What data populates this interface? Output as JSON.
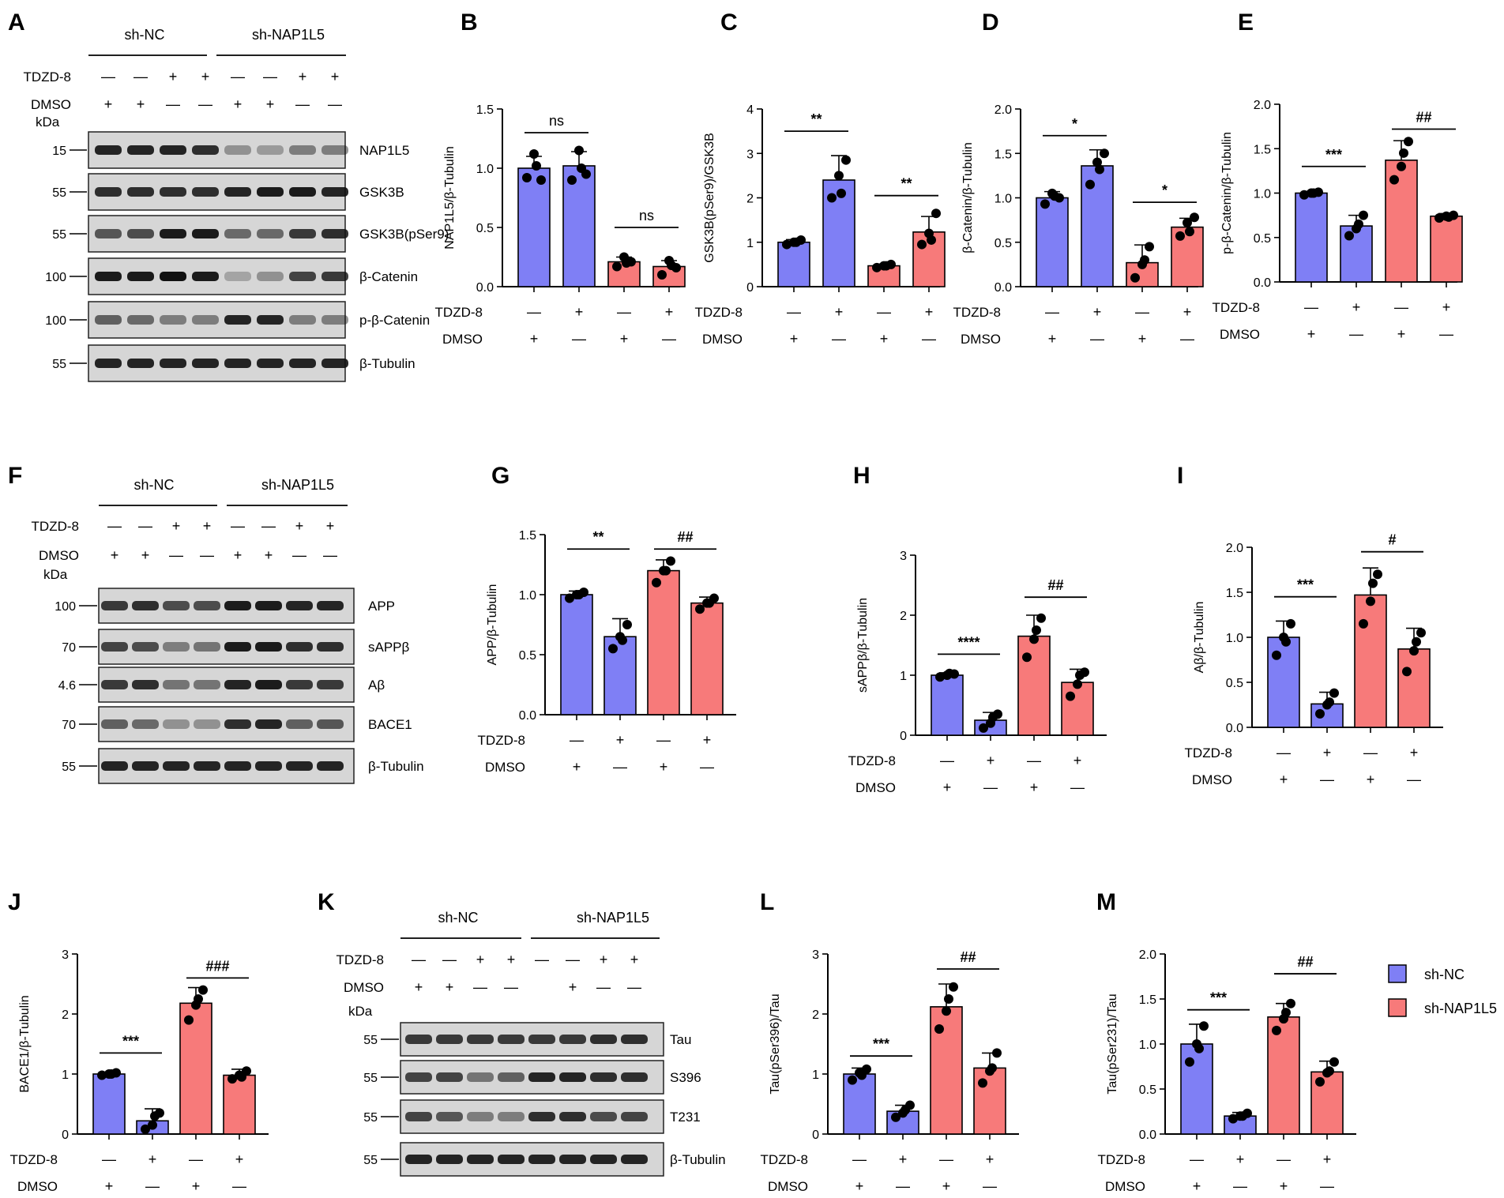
{
  "colors": {
    "shNC": "#7f7ff5",
    "shNAP": "#f77a7a",
    "blot_bg": "#d6d6d6",
    "band": "#111111"
  },
  "treat_labels": {
    "tdzd": "TDZD-8",
    "dmso": "DMSO",
    "kda": "kDa"
  },
  "legend": {
    "items": [
      {
        "label": "sh-NC",
        "color": "#7f7ff5"
      },
      {
        "label": "sh-NAP1L5",
        "color": "#f77a7a"
      }
    ]
  },
  "blots": [
    {
      "label": "A",
      "groups": [
        "sh-NC",
        "sh-NAP1L5"
      ],
      "tdzd": [
        "—",
        "—",
        "+",
        "+",
        "—",
        "—",
        "+",
        "+"
      ],
      "dmso": [
        "+",
        "+",
        "—",
        "—",
        "+",
        "+",
        "—",
        "—"
      ],
      "rows": [
        {
          "marker": "15",
          "name": "NAP1L5",
          "intensity": [
            0.9,
            0.9,
            0.9,
            0.85,
            0.35,
            0.3,
            0.45,
            0.45
          ]
        },
        {
          "marker": "55",
          "name": "GSK3B",
          "intensity": [
            0.85,
            0.85,
            0.85,
            0.85,
            0.9,
            0.95,
            0.95,
            0.9
          ]
        },
        {
          "marker": "55",
          "name": "GSK3B(pSer9)",
          "intensity": [
            0.65,
            0.7,
            0.95,
            0.95,
            0.55,
            0.55,
            0.8,
            0.85
          ]
        },
        {
          "marker": "100",
          "name": "β-Catenin",
          "intensity": [
            0.95,
            0.95,
            1.0,
            0.95,
            0.25,
            0.35,
            0.75,
            0.8
          ]
        },
        {
          "marker": "100",
          "name": "p-β-Catenin",
          "intensity": [
            0.6,
            0.55,
            0.45,
            0.45,
            0.9,
            0.9,
            0.45,
            0.45
          ]
        },
        {
          "marker": "55",
          "name": "β-Tubulin",
          "intensity": [
            0.9,
            0.9,
            0.9,
            0.9,
            0.9,
            0.9,
            0.9,
            0.9
          ]
        }
      ]
    },
    {
      "label": "F",
      "groups": [
        "sh-NC",
        "sh-NAP1L5"
      ],
      "tdzd": [
        "—",
        "—",
        "+",
        "+",
        "—",
        "—",
        "+",
        "+"
      ],
      "dmso": [
        "+",
        "+",
        "—",
        "—",
        "+",
        "+",
        "—",
        "—"
      ],
      "rows": [
        {
          "marker": "100",
          "name": "APP",
          "intensity": [
            0.8,
            0.85,
            0.7,
            0.7,
            0.95,
            0.95,
            0.9,
            0.9
          ]
        },
        {
          "marker": "70",
          "name": "sAPPβ",
          "intensity": [
            0.75,
            0.7,
            0.45,
            0.5,
            0.95,
            0.95,
            0.85,
            0.85
          ]
        },
        {
          "marker": "4.6",
          "name": "Aβ",
          "intensity": [
            0.8,
            0.85,
            0.5,
            0.5,
            0.9,
            0.95,
            0.8,
            0.8
          ]
        },
        {
          "marker": "70",
          "name": "BACE1",
          "intensity": [
            0.6,
            0.55,
            0.35,
            0.35,
            0.85,
            0.9,
            0.6,
            0.65
          ]
        },
        {
          "marker": "55",
          "name": "β-Tubulin",
          "intensity": [
            0.9,
            0.9,
            0.9,
            0.9,
            0.9,
            0.9,
            0.9,
            0.9
          ]
        }
      ]
    },
    {
      "label": "K",
      "groups": [
        "sh-NC",
        "sh-NAP1L5"
      ],
      "tdzd": [
        "—",
        "—",
        "+",
        "+",
        "—",
        "—",
        "+",
        "+"
      ],
      "dmso": [
        "+",
        "+",
        "—",
        "—",
        "",
        "+",
        "—",
        "—"
      ],
      "rows": [
        {
          "marker": "55",
          "name": "Tau",
          "intensity": [
            0.8,
            0.8,
            0.8,
            0.8,
            0.8,
            0.8,
            0.85,
            0.85
          ]
        },
        {
          "marker": "55",
          "name": "S396",
          "intensity": [
            0.75,
            0.75,
            0.5,
            0.6,
            0.9,
            0.9,
            0.85,
            0.85
          ]
        },
        {
          "marker": "55",
          "name": "T231",
          "intensity": [
            0.75,
            0.65,
            0.45,
            0.45,
            0.85,
            0.85,
            0.7,
            0.75
          ]
        },
        {
          "marker": "55",
          "name": "β-Tubulin",
          "intensity": [
            0.9,
            0.9,
            0.9,
            0.9,
            0.9,
            0.9,
            0.9,
            0.9
          ]
        }
      ]
    }
  ],
  "chart_data": [
    {
      "label": "B",
      "type": "bar",
      "ylabel": "NAP1L5/β-Tubulin",
      "ylim": [
        0,
        1.5
      ],
      "yticks": [
        "0.0",
        "0.5",
        "1.0",
        "1.5"
      ],
      "tdzd": [
        "—",
        "+",
        "—",
        "+"
      ],
      "dmso": [
        "+",
        "—",
        "+",
        "—"
      ],
      "values": [
        1.0,
        1.02,
        0.21,
        0.17
      ],
      "errors": [
        0.1,
        0.12,
        0.04,
        0.05
      ],
      "points": [
        [
          0.92,
          1.12,
          0.9,
          1.02
        ],
        [
          0.9,
          1.15,
          0.95,
          1.0
        ],
        [
          0.17,
          0.25,
          0.21,
          0.2
        ],
        [
          0.1,
          0.22,
          0.16,
          0.18
        ]
      ],
      "significance": [
        {
          "from": 0,
          "to": 1,
          "label": "ns",
          "y": 1.3
        },
        {
          "from": 2,
          "to": 3,
          "label": "ns",
          "y": 0.5
        }
      ]
    },
    {
      "label": "C",
      "type": "bar",
      "ylabel": "GSK3B(pSer9)/GSK3B",
      "ylim": [
        0,
        4
      ],
      "yticks": [
        "0",
        "1",
        "2",
        "3",
        "4"
      ],
      "tdzd": [
        "—",
        "+",
        "—",
        "+"
      ],
      "dmso": [
        "+",
        "—",
        "+",
        "—"
      ],
      "values": [
        1.0,
        2.4,
        0.47,
        1.23
      ],
      "errors": [
        0.06,
        0.55,
        0.04,
        0.35
      ],
      "points": [
        [
          0.95,
          1.0,
          1.05,
          1.0
        ],
        [
          2.0,
          2.5,
          2.85,
          2.1
        ],
        [
          0.43,
          0.47,
          0.5,
          0.47
        ],
        [
          0.95,
          1.2,
          1.65,
          1.05
        ]
      ],
      "significance": [
        {
          "from": 0,
          "to": 1,
          "label": "**",
          "y": 3.5
        },
        {
          "from": 2,
          "to": 3,
          "label": "**",
          "y": 2.05
        }
      ]
    },
    {
      "label": "D",
      "type": "bar",
      "ylabel": "β-Catenin/β-Tubulin",
      "ylim": [
        0,
        2
      ],
      "yticks": [
        "0.0",
        "0.5",
        "1.0",
        "1.5",
        "2.0"
      ],
      "tdzd": [
        "—",
        "+",
        "—",
        "+"
      ],
      "dmso": [
        "+",
        "—",
        "+",
        "—"
      ],
      "values": [
        1.0,
        1.36,
        0.27,
        0.67
      ],
      "errors": [
        0.07,
        0.18,
        0.2,
        0.1
      ],
      "points": [
        [
          0.93,
          1.05,
          1.0,
          1.02
        ],
        [
          1.15,
          1.4,
          1.5,
          1.32
        ],
        [
          0.1,
          0.25,
          0.45,
          0.3
        ],
        [
          0.57,
          0.72,
          0.78,
          0.62
        ]
      ],
      "significance": [
        {
          "from": 0,
          "to": 1,
          "label": "*",
          "y": 1.7
        },
        {
          "from": 2,
          "to": 3,
          "label": "*",
          "y": 0.95
        }
      ]
    },
    {
      "label": "E",
      "type": "bar",
      "ylabel": "p-β-Catenin/β-Tubulin",
      "ylim": [
        0,
        2
      ],
      "yticks": [
        "0.0",
        "0.5",
        "1.0",
        "1.5",
        "2.0"
      ],
      "tdzd": [
        "—",
        "+",
        "—",
        "+"
      ],
      "dmso": [
        "+",
        "—",
        "+",
        "—"
      ],
      "values": [
        1.0,
        0.63,
        1.37,
        0.74
      ],
      "errors": [
        0.02,
        0.12,
        0.22,
        0.03
      ],
      "points": [
        [
          0.98,
          1.0,
          1.01,
          1.0
        ],
        [
          0.52,
          0.6,
          0.75,
          0.65
        ],
        [
          1.15,
          1.3,
          1.58,
          1.45
        ],
        [
          0.72,
          0.74,
          0.75,
          0.73
        ]
      ],
      "significance": [
        {
          "from": 0,
          "to": 1,
          "label": "***",
          "y": 1.3
        },
        {
          "from": 2,
          "to": 3,
          "label": "##",
          "y": 1.72
        }
      ]
    },
    {
      "label": "G",
      "type": "bar",
      "ylabel": "APP/β-Tubulin",
      "ylim": [
        0,
        1.5
      ],
      "yticks": [
        "0.0",
        "0.5",
        "1.0",
        "1.5"
      ],
      "tdzd": [
        "—",
        "+",
        "—",
        "+"
      ],
      "dmso": [
        "+",
        "—",
        "+",
        "—"
      ],
      "values": [
        1.0,
        0.65,
        1.2,
        0.93
      ],
      "errors": [
        0.03,
        0.15,
        0.09,
        0.05
      ],
      "points": [
        [
          0.97,
          1.0,
          1.02,
          1.0
        ],
        [
          0.55,
          0.65,
          0.75,
          0.62
        ],
        [
          1.1,
          1.2,
          1.28,
          1.2
        ],
        [
          0.88,
          0.93,
          0.97,
          0.93
        ]
      ],
      "significance": [
        {
          "from": 0,
          "to": 1,
          "label": "**",
          "y": 1.38
        },
        {
          "from": 2,
          "to": 3,
          "label": "##",
          "y": 1.38
        }
      ]
    },
    {
      "label": "H",
      "type": "bar",
      "ylabel": "sAPPβ/β-Tubulin",
      "ylim": [
        0,
        3
      ],
      "yticks": [
        "0",
        "1",
        "2",
        "3"
      ],
      "tdzd": [
        "—",
        "+",
        "—",
        "+"
      ],
      "dmso": [
        "+",
        "—",
        "+",
        "—"
      ],
      "values": [
        1.0,
        0.25,
        1.65,
        0.88
      ],
      "errors": [
        0.04,
        0.13,
        0.35,
        0.22
      ],
      "points": [
        [
          0.97,
          1.0,
          1.02,
          1.03
        ],
        [
          0.12,
          0.2,
          0.35,
          0.3
        ],
        [
          1.3,
          1.6,
          1.95,
          1.75
        ],
        [
          0.65,
          0.85,
          1.05,
          1.0
        ]
      ],
      "significance": [
        {
          "from": 0,
          "to": 1,
          "label": "****",
          "y": 1.35
        },
        {
          "from": 2,
          "to": 3,
          "label": "##",
          "y": 2.3
        }
      ]
    },
    {
      "label": "I",
      "type": "bar",
      "ylabel": "Aβ/β-Tubulin",
      "ylim": [
        0,
        2
      ],
      "yticks": [
        "0.0",
        "0.5",
        "1.0",
        "1.5",
        "2.0"
      ],
      "tdzd": [
        "—",
        "+",
        "—",
        "+"
      ],
      "dmso": [
        "+",
        "—",
        "+",
        "—"
      ],
      "values": [
        1.0,
        0.26,
        1.47,
        0.87
      ],
      "errors": [
        0.18,
        0.13,
        0.3,
        0.23
      ],
      "points": [
        [
          0.8,
          1.0,
          1.15,
          0.95
        ],
        [
          0.15,
          0.25,
          0.38,
          0.28
        ],
        [
          1.15,
          1.4,
          1.7,
          1.6
        ],
        [
          0.62,
          0.85,
          1.05,
          0.95
        ]
      ],
      "significance": [
        {
          "from": 0,
          "to": 1,
          "label": "***",
          "y": 1.45
        },
        {
          "from": 2,
          "to": 3,
          "label": "#",
          "y": 1.95
        }
      ]
    },
    {
      "label": "J",
      "type": "bar",
      "ylabel": "BACE1/β-Tubulin",
      "ylim": [
        0,
        3
      ],
      "yticks": [
        "0",
        "1",
        "2",
        "3"
      ],
      "tdzd": [
        "—",
        "+",
        "—",
        "+"
      ],
      "dmso": [
        "+",
        "—",
        "+",
        "—"
      ],
      "values": [
        1.0,
        0.22,
        2.18,
        0.98
      ],
      "errors": [
        0.03,
        0.2,
        0.26,
        0.1
      ],
      "points": [
        [
          0.98,
          1.0,
          1.02,
          1.0
        ],
        [
          0.08,
          0.15,
          0.35,
          0.3
        ],
        [
          1.9,
          2.15,
          2.4,
          2.25
        ],
        [
          0.92,
          0.98,
          1.05,
          0.95
        ]
      ],
      "significance": [
        {
          "from": 0,
          "to": 1,
          "label": "***",
          "y": 1.35
        },
        {
          "from": 2,
          "to": 3,
          "label": "###",
          "y": 2.6
        }
      ]
    },
    {
      "label": "L",
      "type": "bar",
      "ylabel": "Tau(pSer396)/Tau",
      "ylim": [
        0,
        3
      ],
      "yticks": [
        "0",
        "1",
        "2",
        "3"
      ],
      "tdzd": [
        "—",
        "+",
        "—",
        "+"
      ],
      "dmso": [
        "+",
        "—",
        "+",
        "—"
      ],
      "values": [
        1.0,
        0.38,
        2.12,
        1.1
      ],
      "errors": [
        0.1,
        0.1,
        0.38,
        0.25
      ],
      "points": [
        [
          0.9,
          1.02,
          1.08,
          0.98
        ],
        [
          0.28,
          0.35,
          0.48,
          0.4
        ],
        [
          1.75,
          2.05,
          2.45,
          2.25
        ],
        [
          0.85,
          1.05,
          1.35,
          1.1
        ]
      ],
      "significance": [
        {
          "from": 0,
          "to": 1,
          "label": "***",
          "y": 1.3
        },
        {
          "from": 2,
          "to": 3,
          "label": "##",
          "y": 2.75
        }
      ]
    },
    {
      "label": "M",
      "type": "bar",
      "ylabel": "Tau(pSer231)/Tau",
      "ylim": [
        0,
        2
      ],
      "yticks": [
        "0.0",
        "0.5",
        "1.0",
        "1.5",
        "2.0"
      ],
      "tdzd": [
        "—",
        "+",
        "—",
        "+"
      ],
      "dmso": [
        "+",
        "—",
        "+",
        "—"
      ],
      "values": [
        1.0,
        0.2,
        1.3,
        0.69
      ],
      "errors": [
        0.22,
        0.04,
        0.15,
        0.12
      ],
      "points": [
        [
          0.8,
          1.0,
          1.2,
          0.95
        ],
        [
          0.17,
          0.2,
          0.23,
          0.2
        ],
        [
          1.15,
          1.28,
          1.45,
          1.35
        ],
        [
          0.58,
          0.68,
          0.8,
          0.7
        ]
      ],
      "significance": [
        {
          "from": 0,
          "to": 1,
          "label": "***",
          "y": 1.38
        },
        {
          "from": 2,
          "to": 3,
          "label": "##",
          "y": 1.78
        }
      ]
    }
  ]
}
